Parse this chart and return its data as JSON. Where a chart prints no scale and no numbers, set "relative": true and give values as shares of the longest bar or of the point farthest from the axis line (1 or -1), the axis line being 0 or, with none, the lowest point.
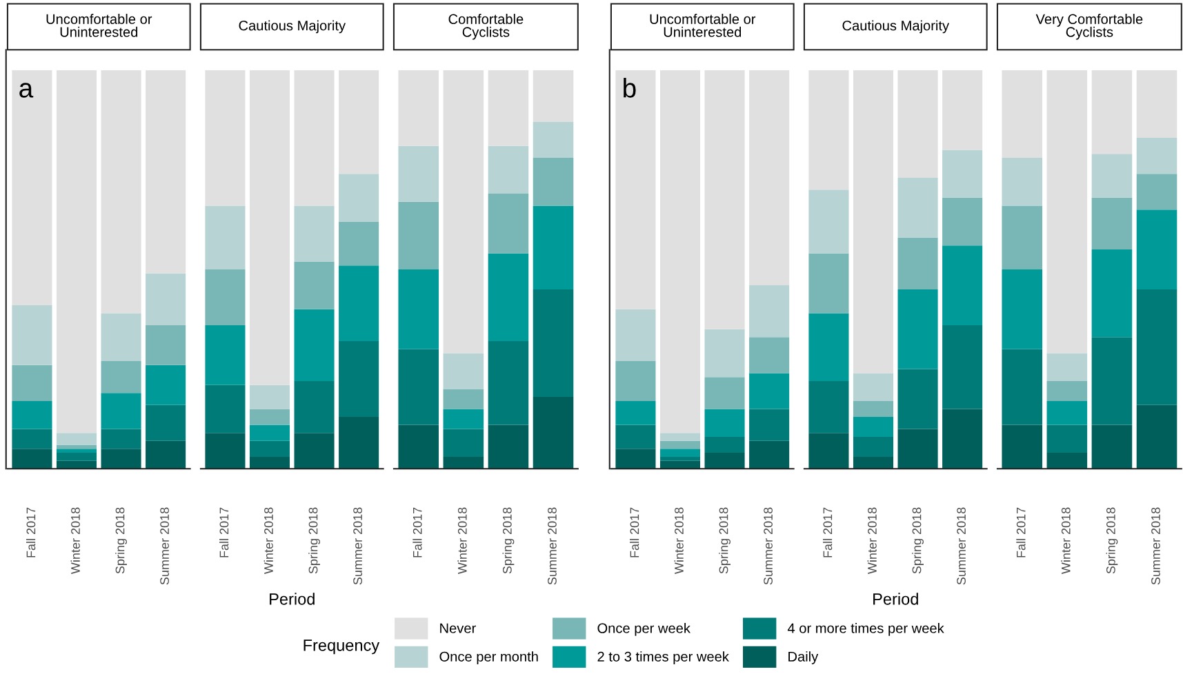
{
  "chart_data": [
    {
      "type": "bar",
      "stacked": true,
      "relative": true,
      "title": "Uncomfortable or\nUninterested",
      "annotations": [
        "a"
      ],
      "legend": "bottom",
      "legend_title": "Frequency",
      "categories": [
        "Fall 2017",
        "Winter 2018",
        "Spring 2018",
        "Summer 2018"
      ],
      "series": [
        {
          "name": "Daily",
          "color": "#005f5b",
          "values": [
            0.05,
            0.02,
            0.05,
            0.07
          ]
        },
        {
          "name": "4 or more times per week",
          "color": "#007b77",
          "values": [
            0.05,
            0.02,
            0.05,
            0.09
          ]
        },
        {
          "name": "2 to 3 times per week",
          "color": "#009b98",
          "values": [
            0.07,
            0.01,
            0.09,
            0.1
          ]
        },
        {
          "name": "Once per week",
          "color": "#78b7b5",
          "values": [
            0.09,
            0.01,
            0.08,
            0.1
          ]
        },
        {
          "name": "Once per month",
          "color": "#b8d3d4",
          "values": [
            0.15,
            0.03,
            0.12,
            0.13
          ]
        },
        {
          "name": "Never",
          "color": "#e0e0e0",
          "values": [
            0.59,
            0.91,
            0.61,
            0.51
          ]
        }
      ]
    },
    {
      "type": "bar",
      "stacked": true,
      "relative": true,
      "title": "Cautious Majority",
      "xlabel": "Period",
      "categories": [
        "Fall 2017",
        "Winter 2018",
        "Spring 2018",
        "Summer 2018"
      ],
      "series": [
        {
          "color": "#005f5b",
          "values": [
            0.09,
            0.03,
            0.09,
            0.13
          ]
        },
        {
          "color": "#007b77",
          "values": [
            0.12,
            0.04,
            0.13,
            0.19
          ]
        },
        {
          "color": "#009b98",
          "values": [
            0.15,
            0.04,
            0.18,
            0.19
          ]
        },
        {
          "color": "#78b7b5",
          "values": [
            0.14,
            0.04,
            0.12,
            0.11
          ]
        },
        {
          "color": "#b8d3d4",
          "values": [
            0.16,
            0.06,
            0.14,
            0.12
          ]
        },
        {
          "color": "#e0e0e0",
          "values": [
            0.34,
            0.79,
            0.34,
            0.26
          ]
        }
      ]
    },
    {
      "type": "bar",
      "stacked": true,
      "relative": true,
      "title": "Comfortable\nCyclists",
      "categories": [
        "Fall 2017",
        "Winter 2018",
        "Spring 2018",
        "Summer 2018"
      ],
      "series": [
        {
          "color": "#005f5b",
          "values": [
            0.11,
            0.03,
            0.11,
            0.18
          ]
        },
        {
          "color": "#007b77",
          "values": [
            0.19,
            0.07,
            0.21,
            0.27
          ]
        },
        {
          "color": "#009b98",
          "values": [
            0.2,
            0.05,
            0.22,
            0.21
          ]
        },
        {
          "color": "#78b7b5",
          "values": [
            0.17,
            0.05,
            0.15,
            0.12
          ]
        },
        {
          "color": "#b8d3d4",
          "values": [
            0.14,
            0.09,
            0.12,
            0.09
          ]
        },
        {
          "color": "#e0e0e0",
          "values": [
            0.19,
            0.71,
            0.19,
            0.13
          ]
        }
      ]
    },
    {
      "type": "bar",
      "stacked": true,
      "relative": true,
      "title": "Uncomfortable or\nUninterested",
      "annotations": [
        "b"
      ],
      "categories": [
        "Fall 2017",
        "Winter 2018",
        "Spring 2018",
        "Summer 2018"
      ],
      "series": [
        {
          "color": "#005f5b",
          "values": [
            0.05,
            0.02,
            0.04,
            0.07
          ]
        },
        {
          "color": "#007b77",
          "values": [
            0.06,
            0.01,
            0.04,
            0.08
          ]
        },
        {
          "color": "#009b98",
          "values": [
            0.06,
            0.02,
            0.07,
            0.09
          ]
        },
        {
          "color": "#78b7b5",
          "values": [
            0.1,
            0.02,
            0.08,
            0.09
          ]
        },
        {
          "color": "#b8d3d4",
          "values": [
            0.13,
            0.02,
            0.12,
            0.13
          ]
        },
        {
          "color": "#e0e0e0",
          "values": [
            0.6,
            0.91,
            0.65,
            0.54
          ]
        }
      ]
    },
    {
      "type": "bar",
      "stacked": true,
      "relative": true,
      "title": "Cautious Majority",
      "xlabel": "Period",
      "categories": [
        "Fall 2017",
        "Winter 2018",
        "Spring 2018",
        "Summer 2018"
      ],
      "series": [
        {
          "color": "#005f5b",
          "values": [
            0.09,
            0.03,
            0.1,
            0.15
          ]
        },
        {
          "color": "#007b77",
          "values": [
            0.13,
            0.05,
            0.15,
            0.21
          ]
        },
        {
          "color": "#009b98",
          "values": [
            0.17,
            0.05,
            0.2,
            0.2
          ]
        },
        {
          "color": "#78b7b5",
          "values": [
            0.15,
            0.04,
            0.13,
            0.12
          ]
        },
        {
          "color": "#b8d3d4",
          "values": [
            0.16,
            0.07,
            0.15,
            0.12
          ]
        },
        {
          "color": "#e0e0e0",
          "values": [
            0.3,
            0.76,
            0.27,
            0.2
          ]
        }
      ]
    },
    {
      "type": "bar",
      "stacked": true,
      "relative": true,
      "title": "Very Comfortable\nCyclists",
      "categories": [
        "Fall 2017",
        "Winter 2018",
        "Spring 2018",
        "Summer 2018"
      ],
      "series": [
        {
          "color": "#005f5b",
          "values": [
            0.11,
            0.04,
            0.11,
            0.16
          ]
        },
        {
          "color": "#007b77",
          "values": [
            0.19,
            0.07,
            0.22,
            0.29
          ]
        },
        {
          "color": "#009b98",
          "values": [
            0.2,
            0.06,
            0.22,
            0.2
          ]
        },
        {
          "color": "#78b7b5",
          "values": [
            0.16,
            0.05,
            0.13,
            0.09
          ]
        },
        {
          "color": "#b8d3d4",
          "values": [
            0.12,
            0.07,
            0.11,
            0.09
          ]
        },
        {
          "color": "#e0e0e0",
          "values": [
            0.22,
            0.71,
            0.21,
            0.17
          ]
        }
      ]
    }
  ]
}
